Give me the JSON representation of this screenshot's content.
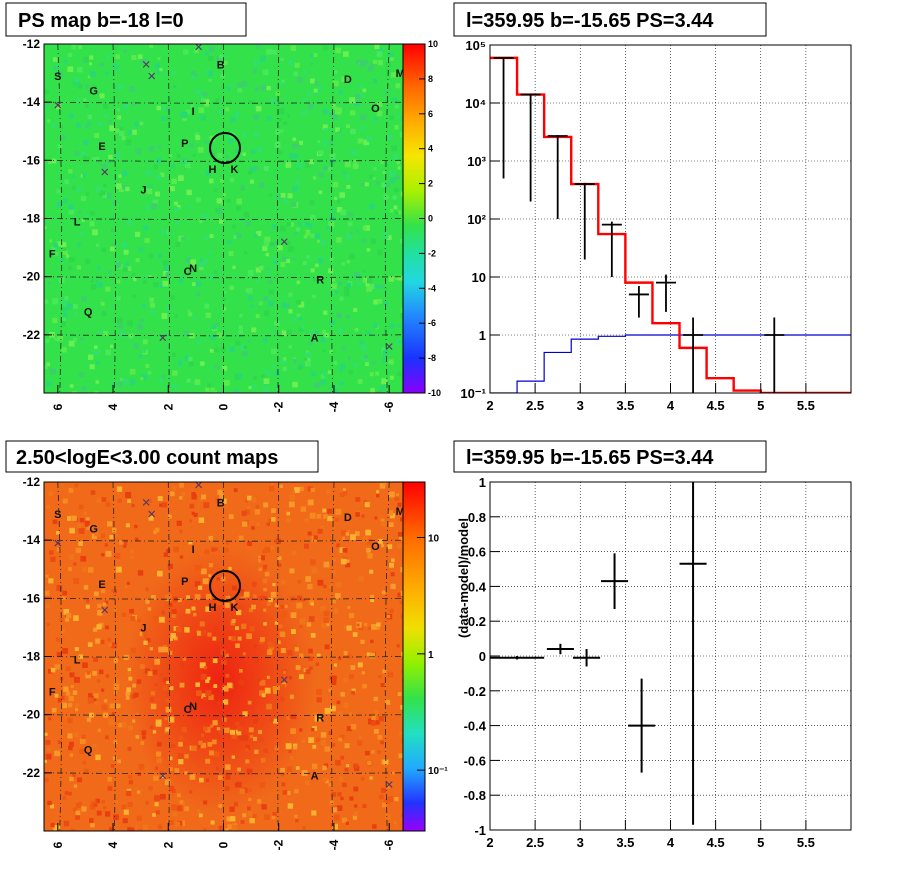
{
  "panels": {
    "ps_map": {
      "title": "PS map b=-18 l=0",
      "x_ticks": [
        "6",
        "4",
        "2",
        "0",
        "-2",
        "-4",
        "-6"
      ],
      "y_ticks": [
        "-12",
        "-14",
        "-16",
        "-18",
        "-20",
        "-22"
      ],
      "colorbar_ticks": [
        "10",
        "8",
        "6",
        "4",
        "2",
        "0",
        "-2",
        "-4",
        "-6",
        "-8",
        "-10"
      ]
    },
    "count_map": {
      "title": "2.50<logE<3.00 count maps",
      "x_ticks": [
        "6",
        "4",
        "2",
        "0",
        "-2",
        "-4",
        "-6"
      ],
      "y_ticks": [
        "-12",
        "-14",
        "-16",
        "-18",
        "-20",
        "-22"
      ],
      "colorbar_ticks": [
        "10",
        "1",
        "10⁻¹"
      ]
    },
    "spectrum": {
      "title": "l=359.95 b=-15.65 PS=3.44"
    },
    "residual": {
      "title": "l=359.95 b=-15.65 PS=3.44"
    }
  },
  "source_labels": [
    "S",
    "G",
    "B",
    "D",
    "M",
    "O",
    "I",
    "E",
    "P",
    "H",
    "K",
    "J",
    "L",
    "F",
    "N",
    "C",
    "R",
    "Q",
    "A"
  ],
  "colors": {
    "ps_map_bg": "#33e24a",
    "count_map_bg": "#f06a1a",
    "model_total": "#ff0000",
    "model_source": "#0000cc",
    "data": "#000000"
  },
  "chart_data": [
    {
      "type": "heatmap",
      "title": "PS map b=-18 l=0",
      "xlim": [
        6.5,
        -6.5
      ],
      "ylim": [
        -24,
        -12
      ],
      "zlim": [
        -10,
        10
      ],
      "x_ticks": [
        6,
        4,
        2,
        0,
        -2,
        -4,
        -6
      ],
      "y_ticks": [
        -12,
        -14,
        -16,
        -18,
        -20,
        -22
      ],
      "marker_circle": {
        "x": 0.0,
        "y": -15.65
      }
    },
    {
      "type": "line",
      "title": "l=359.95 b=-15.65 PS=3.44",
      "xlim": [
        2,
        6
      ],
      "ylim": [
        0.1,
        100000
      ],
      "y_log": true,
      "x_ticks": [
        "2",
        "2.5",
        "3",
        "3.5",
        "4",
        "4.5",
        "5",
        "5.5"
      ],
      "y_ticks": [
        "10⁵",
        "10⁴",
        "10³",
        "10²",
        "10",
        "1",
        "10⁻¹"
      ],
      "series": [
        {
          "step_edges": [
            2.0,
            2.3,
            2.6,
            2.9,
            3.2,
            3.5,
            3.8,
            4.1,
            4.4,
            4.7,
            5.0,
            5.3,
            6.0
          ],
          "values": [
            60000,
            14000,
            2600,
            400,
            55,
            8,
            1.6,
            0.6,
            0.18,
            0.11,
            0.1,
            0.1
          ]
        },
        {
          "step_edges": [
            2.0,
            2.3,
            2.6,
            2.9,
            3.2,
            3.5,
            3.8,
            4.1,
            4.4,
            4.7,
            5.0,
            5.3,
            6.0
          ],
          "values": [
            0.1,
            0.16,
            0.5,
            0.85,
            0.95,
            1.0,
            1.0,
            1.0,
            1.0,
            1.0,
            1.0,
            1.0
          ]
        },
        {
          "x": [
            2.15,
            2.45,
            2.75,
            3.05,
            3.35,
            3.65,
            3.95,
            4.25,
            5.15
          ],
          "y": [
            60000,
            14000,
            2700,
            400,
            80,
            5,
            8,
            1.0,
            1.0
          ],
          "yerr_low": [
            59500,
            13800,
            2600,
            380,
            70,
            3,
            5.5,
            0.95,
            0.95
          ],
          "yerr_high": [
            60500,
            14200,
            2800,
            420,
            90,
            7,
            11,
            2.0,
            2.0
          ]
        }
      ]
    },
    {
      "type": "heatmap",
      "title": "2.50<logE<3.00 count maps",
      "xlim": [
        6.5,
        -6.5
      ],
      "ylim": [
        -24,
        -12
      ],
      "z_log": true,
      "zlim": [
        0.03,
        30
      ],
      "x_ticks": [
        6,
        4,
        2,
        0,
        -2,
        -4,
        -6
      ],
      "y_ticks": [
        -12,
        -14,
        -16,
        -18,
        -20,
        -22
      ],
      "marker_circle": {
        "x": 0.0,
        "y": -15.65
      }
    },
    {
      "type": "scatter",
      "title": "l=359.95 b=-15.65 PS=3.44",
      "ylabel": "(data-model)/model",
      "xlim": [
        2,
        6
      ],
      "ylim": [
        -1,
        1
      ],
      "x_ticks": [
        "2",
        "2.5",
        "3",
        "3.5",
        "4",
        "4.5",
        "5",
        "5.5"
      ],
      "y_ticks": [
        "1",
        "0.8",
        "0.6",
        "0.4",
        "0.2",
        "0",
        "-0.2",
        "-0.4",
        "-0.6",
        "-0.8",
        "-1"
      ],
      "series": [
        {
          "x": [
            2.3,
            2.78,
            3.07,
            3.38,
            3.68,
            4.25
          ],
          "y": [
            -0.01,
            0.04,
            -0.01,
            0.43,
            -0.4,
            0.53
          ],
          "yerr": [
            0.01,
            0.03,
            0.05,
            0.16,
            0.27,
            1.5
          ],
          "xerr": [
            0.3,
            0.15,
            0.15,
            0.15,
            0.15,
            0.15
          ]
        }
      ]
    }
  ]
}
